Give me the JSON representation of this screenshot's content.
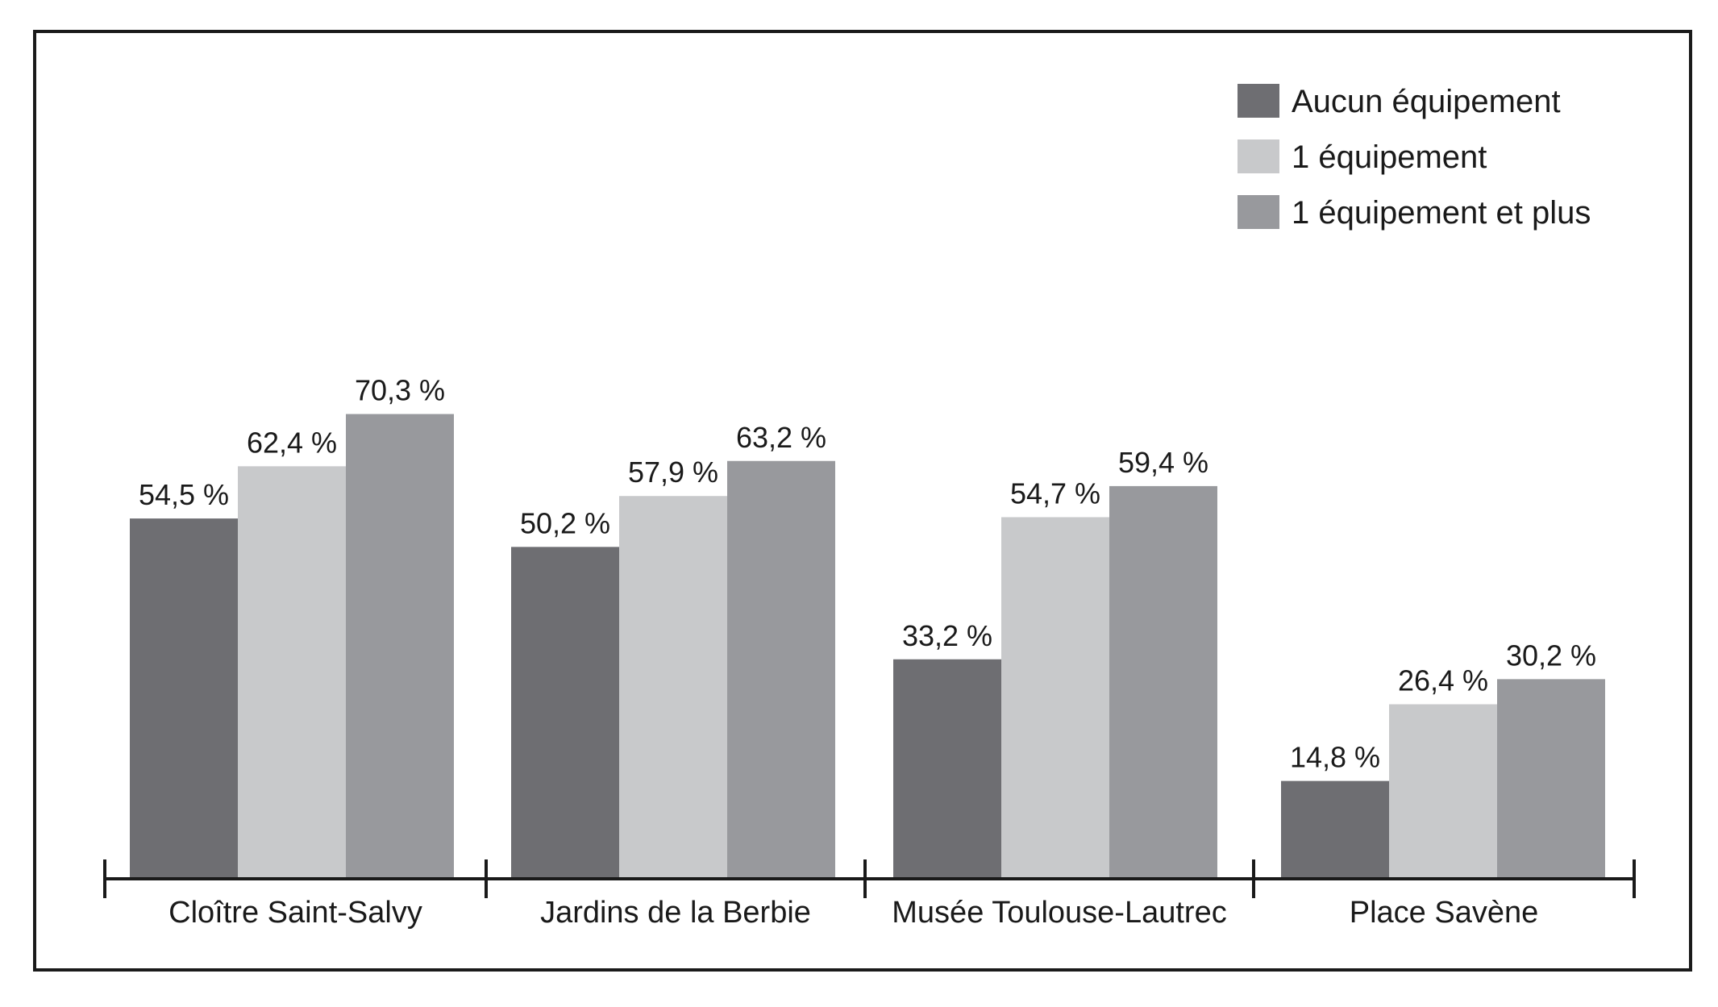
{
  "chart_data": {
    "type": "bar",
    "categories": [
      "Cloître Saint-Salvy",
      "Jardins de la Berbie",
      "Musée Toulouse-Lautrec",
      "Place Savène"
    ],
    "series": [
      {
        "name": "Aucun équipement",
        "color": "#6e6e72",
        "values": [
          54.5,
          50.2,
          33.2,
          14.8
        ],
        "labels": [
          "54,5 %",
          "50,2 %",
          "33,2 %",
          "14,8 %"
        ]
      },
      {
        "name": "1 équipement",
        "color": "#c8c9cb",
        "values": [
          62.4,
          57.9,
          54.7,
          26.4
        ],
        "labels": [
          "62,4 %",
          "57,9 %",
          "54,7 %",
          "26,4 %"
        ]
      },
      {
        "name": "1 équipement et plus",
        "color": "#98999d",
        "values": [
          70.3,
          63.2,
          59.4,
          30.2
        ],
        "labels": [
          "70,3 %",
          "63,2 %",
          "59,4 %",
          "30,2 %"
        ]
      }
    ],
    "ylim": [
      0,
      100
    ],
    "grid": false,
    "legend_position": "top-right",
    "axis_color": "#1a1a1a"
  }
}
